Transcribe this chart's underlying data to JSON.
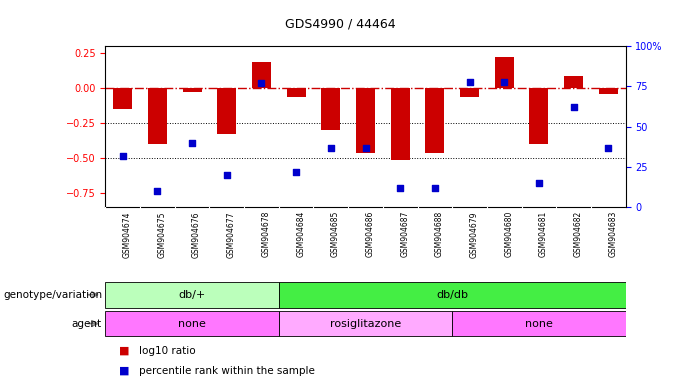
{
  "title": "GDS4990 / 44464",
  "samples": [
    "GSM904674",
    "GSM904675",
    "GSM904676",
    "GSM904677",
    "GSM904678",
    "GSM904684",
    "GSM904685",
    "GSM904686",
    "GSM904687",
    "GSM904688",
    "GSM904679",
    "GSM904680",
    "GSM904681",
    "GSM904682",
    "GSM904683"
  ],
  "log10_ratio": [
    -0.15,
    -0.4,
    -0.03,
    -0.33,
    0.19,
    -0.06,
    -0.3,
    -0.46,
    -0.51,
    -0.46,
    -0.06,
    0.22,
    -0.4,
    0.09,
    -0.04
  ],
  "percentile": [
    32,
    10,
    40,
    20,
    77,
    22,
    37,
    37,
    12,
    12,
    78,
    78,
    15,
    62,
    37
  ],
  "genotype_groups": [
    {
      "label": "db/+",
      "start": 0,
      "end": 5,
      "color": "#bbffbb"
    },
    {
      "label": "db/db",
      "start": 5,
      "end": 15,
      "color": "#44ee44"
    }
  ],
  "agent_groups": [
    {
      "label": "none",
      "start": 0,
      "end": 5,
      "color": "#ff77ff"
    },
    {
      "label": "rosiglitazone",
      "start": 5,
      "end": 10,
      "color": "#ffaaff"
    },
    {
      "label": "none",
      "start": 10,
      "end": 15,
      "color": "#ff77ff"
    }
  ],
  "ylim_left": [
    -0.85,
    0.3
  ],
  "ylim_right": [
    0,
    100
  ],
  "bar_color": "#cc0000",
  "dot_color": "#0000cc",
  "hline_color": "#cc0000",
  "dotline_vals": [
    -0.25,
    -0.5
  ],
  "right_ticks": [
    0,
    25,
    50,
    75,
    100
  ],
  "right_tick_labels": [
    "0",
    "25",
    "50",
    "75",
    "100%"
  ],
  "left_ticks": [
    0.25,
    0.0,
    -0.25,
    -0.5,
    -0.75
  ],
  "background_color": "#ffffff",
  "genotype_label": "genotype/variation",
  "agent_label": "agent",
  "xlabel_bg": "#cccccc"
}
